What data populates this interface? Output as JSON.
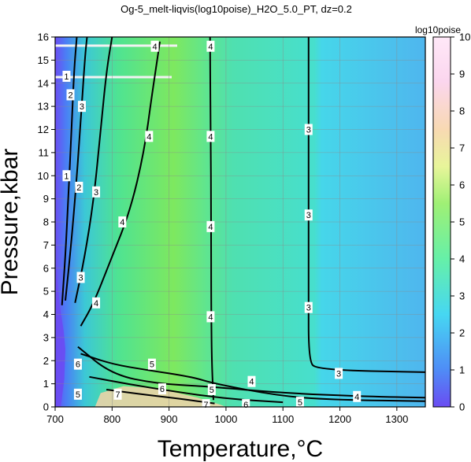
{
  "chart_data": {
    "type": "heatmap",
    "title": "Og-5_melt-liqvis(log10poise)_H2O_5.0_PT, dz=0.2",
    "xlabel": "Temperature,°C",
    "ylabel": "Pressure,kbar",
    "xlim": [
      700,
      1350
    ],
    "ylim": [
      0,
      16
    ],
    "x_ticks": [
      700,
      800,
      900,
      1000,
      1100,
      1200,
      1300
    ],
    "y_ticks": [
      0,
      1,
      2,
      3,
      4,
      5,
      6,
      7,
      8,
      9,
      10,
      11,
      12,
      13,
      14,
      15,
      16
    ],
    "colorbar": {
      "label": "log10poise",
      "range": [
        0,
        10
      ],
      "ticks": [
        0,
        1,
        2,
        3,
        4,
        5,
        6,
        7,
        8,
        9,
        10
      ],
      "colors": [
        "#6a4cf2",
        "#4f8cf6",
        "#46d7f2",
        "#66f0a8",
        "#9ff075",
        "#e8f59a",
        "#f8d9b2",
        "#fbd6ee",
        "#ffe8f8"
      ]
    },
    "contours": [
      {
        "level": 1,
        "points": [
          [
            712,
            4.4
          ],
          [
            718,
            6.5
          ],
          [
            723,
            9.0
          ],
          [
            728,
            11.5
          ],
          [
            733,
            14.5
          ],
          [
            738,
            16
          ]
        ]
      },
      {
        "level": 2,
        "points": [
          [
            718,
            4.6
          ],
          [
            726,
            6.5
          ],
          [
            735,
            9.0
          ],
          [
            744,
            12.0
          ],
          [
            752,
            15.0
          ],
          [
            756,
            16
          ]
        ]
      },
      {
        "level": 3,
        "points": [
          [
            735,
            4.5
          ],
          [
            752,
            6.5
          ],
          [
            768,
            9.0
          ],
          [
            780,
            12.0
          ],
          [
            790,
            14.5
          ],
          [
            800,
            16
          ]
        ]
      },
      {
        "level": 4,
        "points": [
          [
            745,
            3.5
          ],
          [
            768,
            4.5
          ],
          [
            800,
            6.5
          ],
          [
            832,
            8.5
          ],
          [
            856,
            11.0
          ],
          [
            870,
            13.5
          ],
          [
            884,
            15.8
          ]
        ]
      },
      {
        "level": 4,
        "points": [
          [
            978,
            0.3
          ],
          [
            975,
            2.0
          ],
          [
            974,
            4.5
          ],
          [
            974,
            8.0
          ],
          [
            973,
            12.0
          ],
          [
            972,
            16
          ]
        ]
      },
      {
        "level": 3,
        "points": [
          [
            1350,
            1.5
          ],
          [
            1160,
            1.6
          ],
          [
            1145,
            2.0
          ],
          [
            1145,
            5.0
          ],
          [
            1145,
            9.0
          ],
          [
            1145,
            16
          ]
        ]
      },
      {
        "level": 4,
        "points": [
          [
            740,
            2.6
          ],
          [
            800,
            1.4
          ],
          [
            880,
            1.0
          ],
          [
            960,
            0.9
          ],
          [
            1100,
            0.6
          ],
          [
            1250,
            0.45
          ],
          [
            1350,
            0.4
          ]
        ]
      },
      {
        "level": 5,
        "points": [
          [
            745,
            2.3
          ],
          [
            800,
            1.85
          ],
          [
            860,
            1.6
          ],
          [
            940,
            1.3
          ],
          [
            980,
            1.0
          ],
          [
            1100,
            0.45
          ],
          [
            1200,
            0.3
          ],
          [
            1350,
            0.25
          ]
        ]
      },
      {
        "level": 6,
        "points": [
          [
            760,
            1.3
          ],
          [
            830,
            0.98
          ],
          [
            900,
            0.7
          ],
          [
            1000,
            0.35
          ],
          [
            1100,
            0.2
          ]
        ]
      },
      {
        "level": 7,
        "points": [
          [
            790,
            0.75
          ],
          [
            850,
            0.55
          ],
          [
            920,
            0.35
          ],
          [
            980,
            0.15
          ]
        ]
      }
    ],
    "contour_labels": [
      {
        "text": "1",
        "x": 720,
        "y": 14.3
      },
      {
        "text": "2",
        "x": 727,
        "y": 13.5
      },
      {
        "text": "3",
        "x": 747,
        "y": 13.0
      },
      {
        "text": "4",
        "x": 875,
        "y": 15.6
      },
      {
        "text": "4",
        "x": 973,
        "y": 15.6
      },
      {
        "text": "4",
        "x": 865,
        "y": 11.7
      },
      {
        "text": "4",
        "x": 973,
        "y": 11.7
      },
      {
        "text": "3",
        "x": 1145,
        "y": 12.0
      },
      {
        "text": "1",
        "x": 720,
        "y": 10.0
      },
      {
        "text": "2",
        "x": 742,
        "y": 9.5
      },
      {
        "text": "3",
        "x": 772,
        "y": 9.3
      },
      {
        "text": "4",
        "x": 818,
        "y": 8.0
      },
      {
        "text": "4",
        "x": 973,
        "y": 7.8
      },
      {
        "text": "3",
        "x": 1145,
        "y": 8.3
      },
      {
        "text": "3",
        "x": 745,
        "y": 5.6
      },
      {
        "text": "4",
        "x": 772,
        "y": 4.5
      },
      {
        "text": "4",
        "x": 973,
        "y": 3.9
      },
      {
        "text": "3",
        "x": 1145,
        "y": 4.3
      },
      {
        "text": "5",
        "x": 870,
        "y": 1.85
      },
      {
        "text": "3",
        "x": 1198,
        "y": 1.45
      },
      {
        "text": "4",
        "x": 1045,
        "y": 1.1
      },
      {
        "text": "5",
        "x": 975,
        "y": 0.75
      },
      {
        "text": "6",
        "x": 888,
        "y": 0.78
      },
      {
        "text": "7",
        "x": 810,
        "y": 0.55
      },
      {
        "text": "4",
        "x": 1230,
        "y": 0.45
      },
      {
        "text": "5",
        "x": 1130,
        "y": 0.2
      },
      {
        "text": "6",
        "x": 1035,
        "y": 0.1
      },
      {
        "text": "7",
        "x": 965,
        "y": 0.1
      },
      {
        "text": "6",
        "x": 740,
        "y": 1.85
      },
      {
        "text": "5",
        "x": 740,
        "y": 0.55
      }
    ]
  }
}
